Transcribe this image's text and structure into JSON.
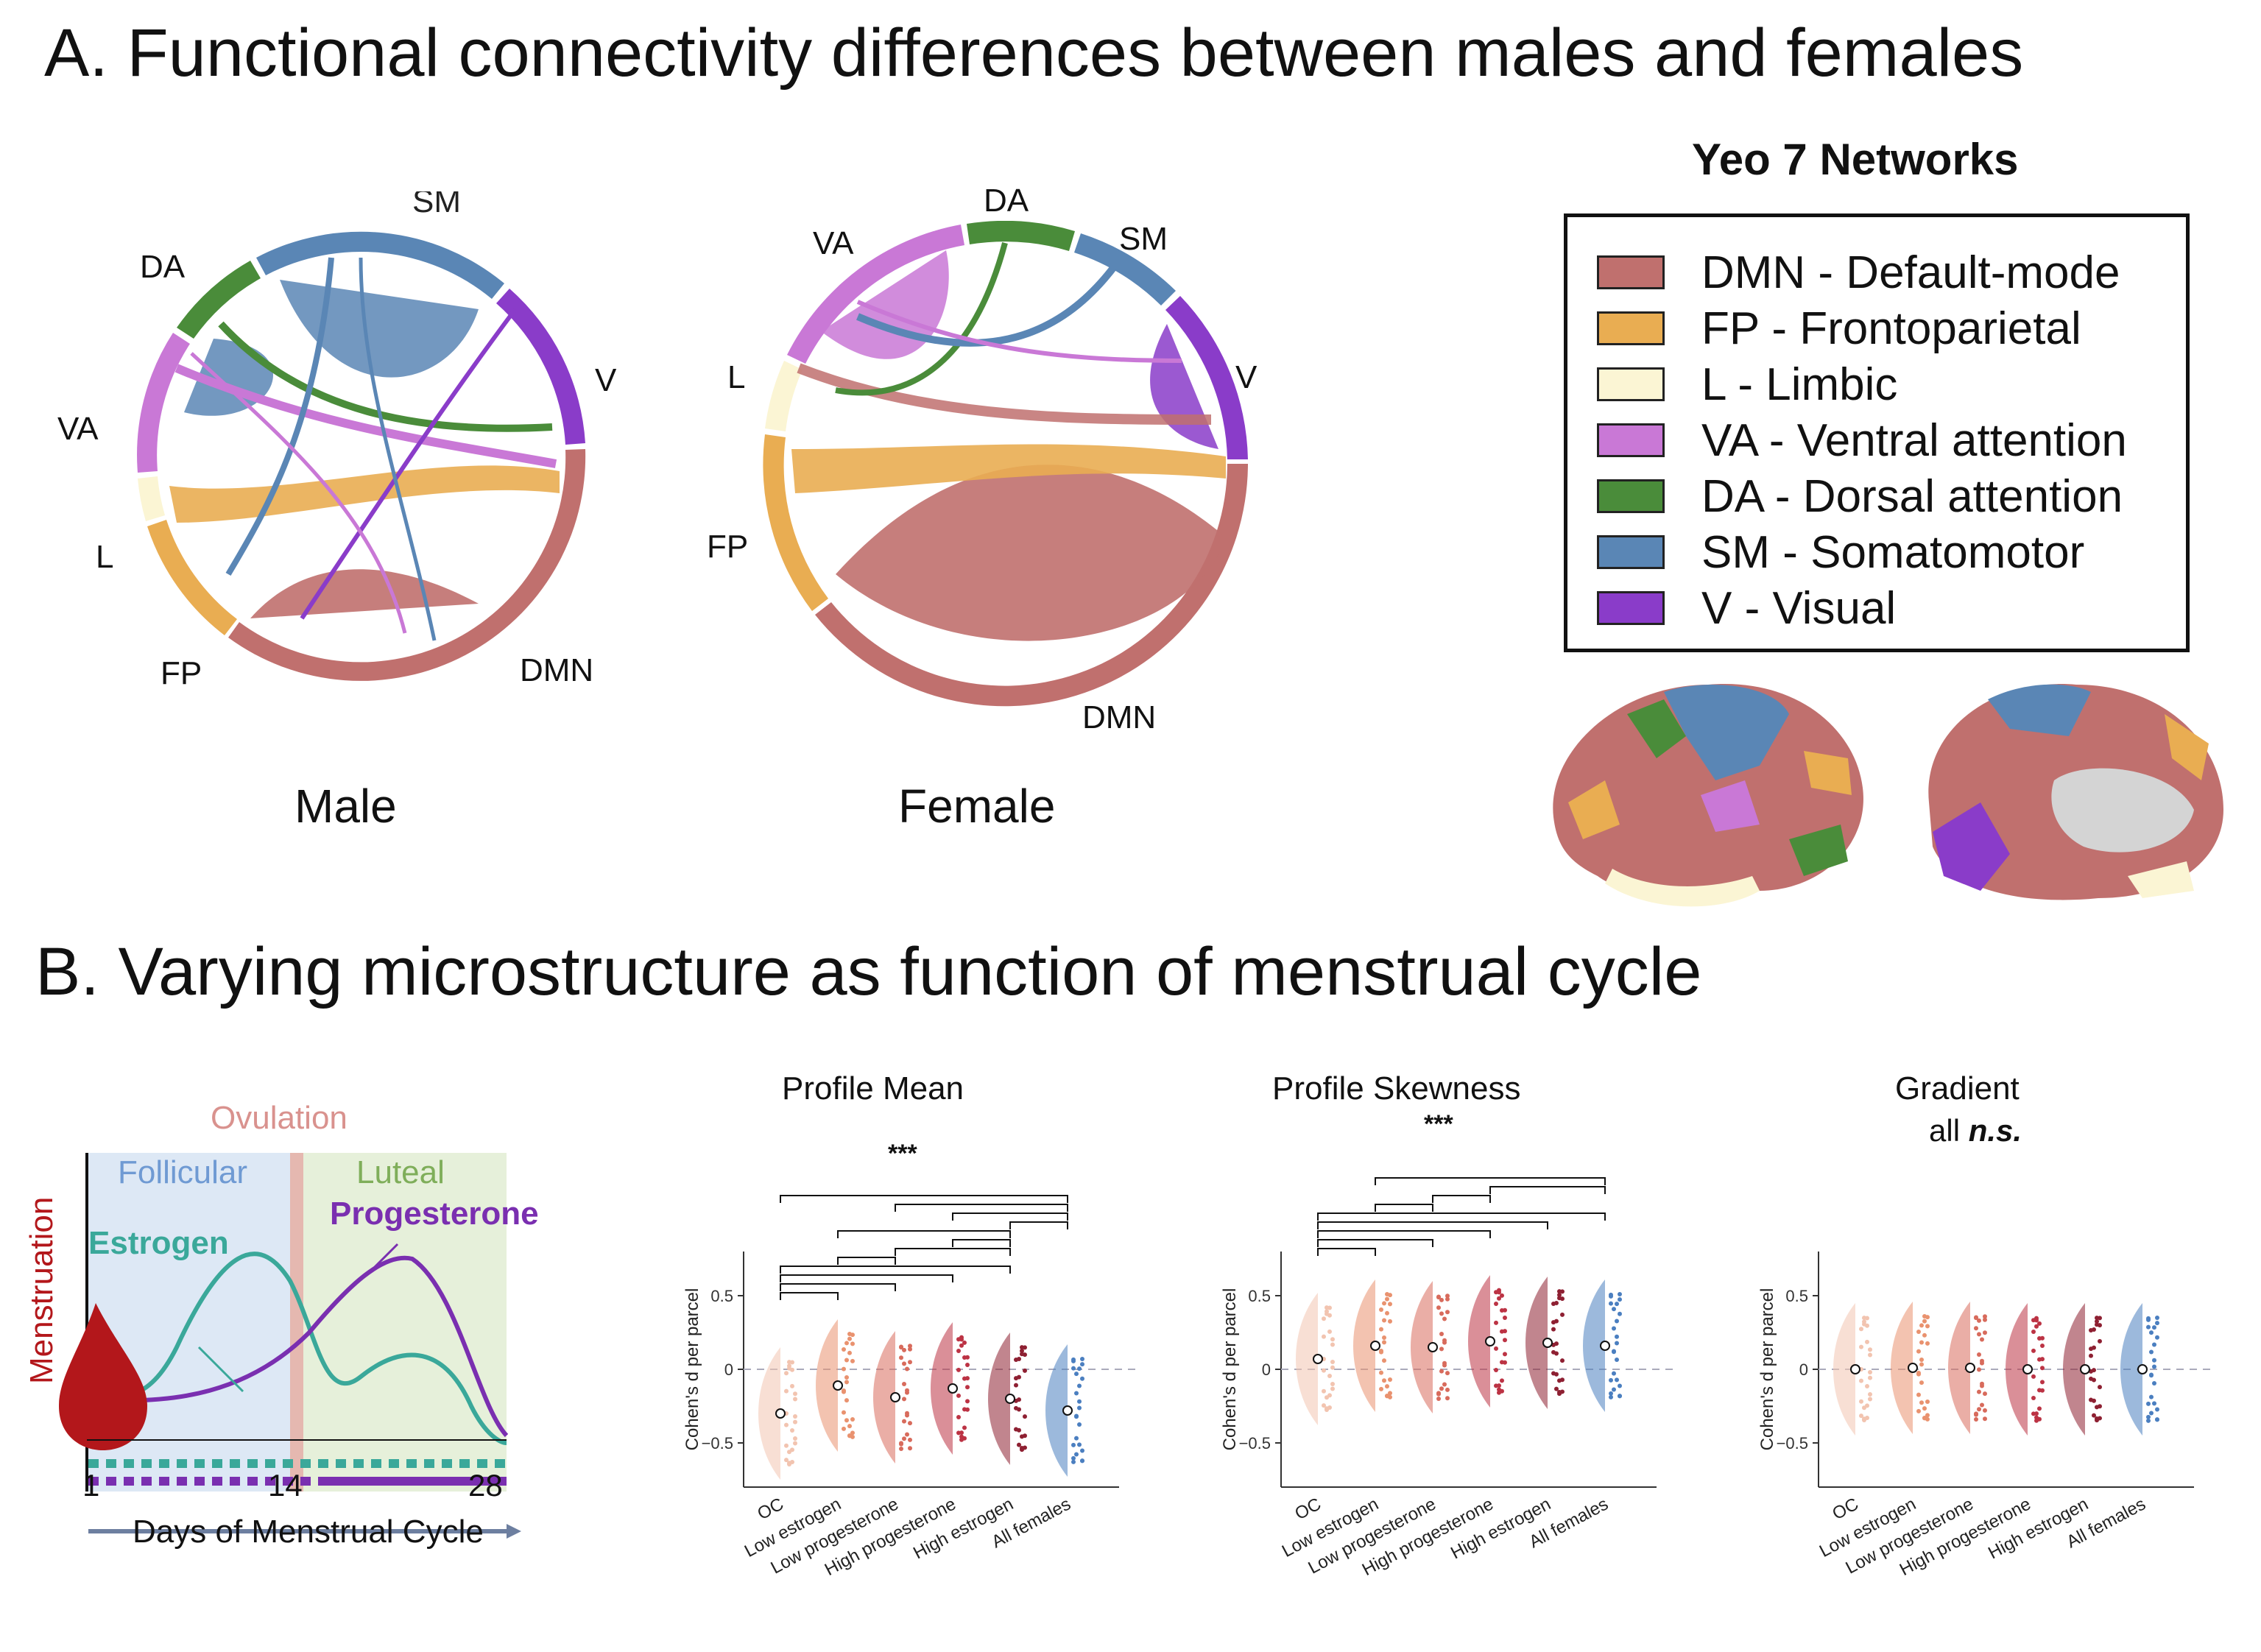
{
  "panel_a": {
    "title": "A. Functional connectivity differences between males and females",
    "male": {
      "caption": "Male",
      "labels": {
        "SM": "SM",
        "DA": "DA",
        "V": "V",
        "VA": "VA",
        "L": "L",
        "FP": "FP",
        "DMN": "DMN"
      }
    },
    "female": {
      "caption": "Female",
      "labels": {
        "DA": "DA",
        "VA": "VA",
        "SM": "SM",
        "L": "L",
        "V": "V",
        "FP": "FP",
        "DMN": "DMN"
      }
    },
    "legend": {
      "title": "Yeo 7 Networks",
      "items": [
        {
          "label": "DMN - Default-mode",
          "color": "#c0706e"
        },
        {
          "label": "FP - Frontoparietal",
          "color": "#e9ad52"
        },
        {
          "label": "L - Limbic",
          "color": "#fbf5d4"
        },
        {
          "label": "VA - Ventral attention",
          "color": "#c978d6"
        },
        {
          "label": "DA - Dorsal attention",
          "color": "#4a8c3a"
        },
        {
          "label": "SM - Somatomotor",
          "color": "#5a86b5"
        },
        {
          "label": "V - Visual",
          "color": "#8a3cc9"
        }
      ]
    }
  },
  "panel_b": {
    "title": "B. Varying microstructure as function of menstrual cycle",
    "cycle": {
      "ovulation": "Ovulation",
      "follicular": "Follicular",
      "luteal": "Luteal",
      "progesterone": "Progesterone",
      "estrogen": "Estrogen",
      "menstruation": "Menstruation",
      "tick_1": "1",
      "tick_14": "14",
      "tick_28": "28",
      "axis_label": "Days of Menstrual Cycle",
      "colors": {
        "estrogen": "#3aa89a",
        "progesterone": "#7a2fb0",
        "blood": "#b3171b",
        "follicular": "#dde8f5",
        "luteal": "#e6f0da"
      }
    }
  },
  "chart_data": [
    {
      "type": "scatter",
      "title": "Profile Mean",
      "significance": "***",
      "ylabel": "Cohen's d per parcel",
      "yticks": [
        "0.5",
        "0",
        "−0.5"
      ],
      "ylim": [
        -0.8,
        0.8
      ],
      "categories": [
        "OC",
        "Low estrogen",
        "Low progesterone",
        "High progesterone",
        "High estrogen",
        "All females"
      ],
      "values": [
        -0.3,
        -0.11,
        -0.19,
        -0.13,
        -0.2,
        -0.28
      ]
    },
    {
      "type": "scatter",
      "title": "Profile Skewness",
      "significance": "***",
      "ylabel": "Cohen's d per parcel",
      "yticks": [
        "0.5",
        "0",
        "−0.5"
      ],
      "ylim": [
        -0.8,
        0.8
      ],
      "categories": [
        "OC",
        "Low estrogen",
        "Low progesterone",
        "High progesterone",
        "High estrogen",
        "All females"
      ],
      "values": [
        0.07,
        0.16,
        0.15,
        0.19,
        0.18,
        0.16
      ]
    },
    {
      "type": "scatter",
      "title": "Gradient",
      "note_prefix": "all ",
      "note_italic": "n.s.",
      "ylabel": "Cohen's d per parcel",
      "yticks": [
        "0.5",
        "0",
        "−0.5"
      ],
      "ylim": [
        -0.8,
        0.8
      ],
      "categories": [
        "OC",
        "Low estrogen",
        "Low progesterone",
        "High progesterone",
        "High estrogen",
        "All females"
      ],
      "values": [
        0.0,
        0.01,
        0.01,
        0.0,
        0.0,
        0.0
      ]
    }
  ]
}
